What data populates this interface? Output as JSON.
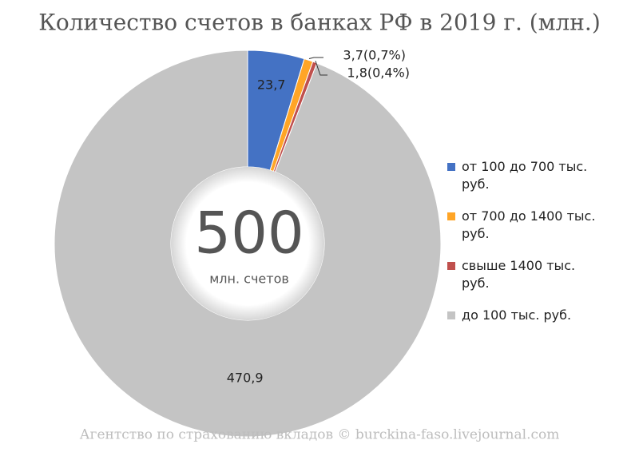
{
  "chart_data": {
    "type": "donut",
    "title": "Количество счетов в банках РФ в 2019 г. (млн.)",
    "center_value": "500",
    "center_label": "млн. счетов",
    "categories": [
      "от 100 до 700 тыс. руб.",
      "от 700 до 1400 тыс. руб.",
      "свыше 1400 тыс. руб.",
      "до 100 тыс. руб."
    ],
    "values": [
      23.7,
      3.7,
      1.8,
      470.9
    ],
    "value_labels": [
      "23,7",
      "3,7(0,7%)",
      "1,8(0,4%)",
      "470,9"
    ],
    "colors": [
      "#4472c4",
      "#ffa526",
      "#c0504d",
      "#c4c4c4"
    ],
    "legend": "right",
    "source": "Агентство по страхованию вкладов © burckina-faso.livejournal.com"
  }
}
